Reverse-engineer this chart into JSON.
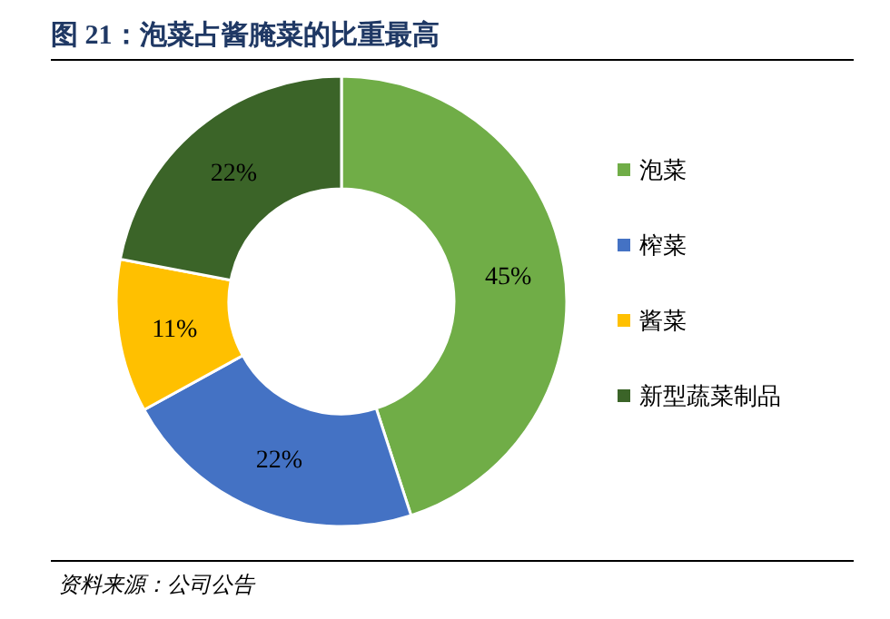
{
  "chart_data": {
    "type": "donut",
    "title": "图 21：泡菜占酱腌菜的比重最高",
    "categories": [
      "泡菜",
      "榨菜",
      "酱菜",
      "新型蔬菜制品"
    ],
    "values": [
      45,
      22,
      11,
      22
    ],
    "colors": [
      "#70ad47",
      "#4472c4",
      "#ffc000",
      "#3b6428"
    ],
    "value_labels": [
      "45%",
      "22%",
      "11%",
      "22%"
    ],
    "legend": "right",
    "annotations": [
      "资料来源：公司公告"
    ]
  }
}
